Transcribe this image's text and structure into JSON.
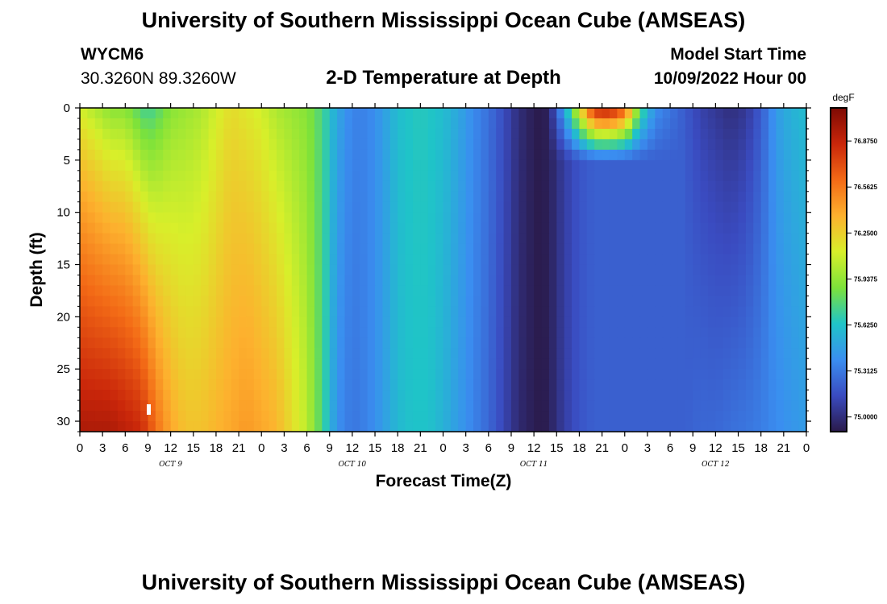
{
  "title": "University of Southern Mississippi Ocean Cube (AMSEAS)",
  "station": {
    "id": "WYCM6",
    "coords": "30.3260N  89.3260W"
  },
  "subtitle": "2-D Temperature at Depth",
  "model": {
    "label": "Model Start Time",
    "time": "10/09/2022 Hour 00"
  },
  "footer_title": "University of Southern Mississippi Ocean Cube (AMSEAS)",
  "chart_data": {
    "type": "heatmap",
    "title": "2-D Temperature at Depth",
    "xlabel": "Forecast Time(Z)",
    "ylabel": "Depth (ft)",
    "x_range_hours": [
      0,
      96
    ],
    "y_range_ft": [
      0,
      31
    ],
    "y_ticks": [
      0,
      5,
      10,
      15,
      20,
      25,
      30
    ],
    "x_tick_labels": [
      "0",
      "3",
      "6",
      "9",
      "12",
      "15",
      "18",
      "21",
      "0",
      "3",
      "6",
      "9",
      "12",
      "15",
      "18",
      "21",
      "0",
      "3",
      "6",
      "9",
      "12",
      "15",
      "18",
      "21",
      "0",
      "3",
      "6",
      "9",
      "12",
      "15",
      "18",
      "21",
      "0"
    ],
    "date_labels": [
      {
        "label": "OCT 9",
        "hour": 12
      },
      {
        "label": "OCT 10",
        "hour": 36
      },
      {
        "label": "OCT 11",
        "hour": 60
      },
      {
        "label": "OCT 12",
        "hour": 84
      }
    ],
    "colorbar": {
      "unit": "degF",
      "min": 74.9,
      "max": 77.1,
      "ticks": [
        "75.0000",
        "75.3125",
        "75.6250",
        "75.9375",
        "76.2500",
        "76.5625",
        "76.8750"
      ],
      "tick_values": [
        75.0,
        75.3125,
        75.625,
        75.9375,
        76.25,
        76.5625,
        76.875
      ],
      "colors": [
        "#2a1a4a",
        "#3a4bc0",
        "#3a8ef0",
        "#1fc4c8",
        "#7de23a",
        "#d8ef2a",
        "#fdb12e",
        "#f36a16",
        "#c9260a",
        "#7e0a04"
      ]
    },
    "time_profile": [
      {
        "h": 0,
        "top": 76.1,
        "bottom": 76.95
      },
      {
        "h": 2,
        "top": 76.0,
        "bottom": 76.95
      },
      {
        "h": 4,
        "top": 75.9,
        "bottom": 76.95
      },
      {
        "h": 6,
        "top": 75.9,
        "bottom": 76.9
      },
      {
        "h": 8,
        "top": 75.75,
        "bottom": 76.85
      },
      {
        "h": 9,
        "top": 75.7,
        "bottom": 76.75
      },
      {
        "h": 10,
        "top": 75.75,
        "bottom": 76.6
      },
      {
        "h": 12,
        "top": 75.9,
        "bottom": 76.4
      },
      {
        "h": 14,
        "top": 75.95,
        "bottom": 76.3
      },
      {
        "h": 16,
        "top": 76.0,
        "bottom": 76.3
      },
      {
        "h": 18,
        "top": 76.1,
        "bottom": 76.35
      },
      {
        "h": 20,
        "top": 76.2,
        "bottom": 76.4
      },
      {
        "h": 22,
        "top": 76.15,
        "bottom": 76.45
      },
      {
        "h": 24,
        "top": 76.1,
        "bottom": 76.4
      },
      {
        "h": 26,
        "top": 76.0,
        "bottom": 76.35
      },
      {
        "h": 28,
        "top": 75.95,
        "bottom": 76.2
      },
      {
        "h": 30,
        "top": 75.9,
        "bottom": 76.05
      },
      {
        "h": 32,
        "top": 75.75,
        "bottom": 75.75
      },
      {
        "h": 34,
        "top": 75.5,
        "bottom": 75.4
      },
      {
        "h": 36,
        "top": 75.35,
        "bottom": 75.3
      },
      {
        "h": 38,
        "top": 75.35,
        "bottom": 75.35
      },
      {
        "h": 40,
        "top": 75.45,
        "bottom": 75.45
      },
      {
        "h": 42,
        "top": 75.6,
        "bottom": 75.58
      },
      {
        "h": 44,
        "top": 75.65,
        "bottom": 75.63
      },
      {
        "h": 46,
        "top": 75.65,
        "bottom": 75.63
      },
      {
        "h": 48,
        "top": 75.6,
        "bottom": 75.55
      },
      {
        "h": 50,
        "top": 75.5,
        "bottom": 75.45
      },
      {
        "h": 52,
        "top": 75.38,
        "bottom": 75.35
      },
      {
        "h": 54,
        "top": 75.28,
        "bottom": 75.25
      },
      {
        "h": 56,
        "top": 75.15,
        "bottom": 75.12
      },
      {
        "h": 58,
        "top": 75.0,
        "bottom": 74.98
      },
      {
        "h": 60,
        "top": 74.92,
        "bottom": 74.92
      },
      {
        "h": 61,
        "top": 74.9,
        "bottom": 74.9
      },
      {
        "h": 62,
        "top": 74.95,
        "bottom": 74.93
      },
      {
        "h": 64,
        "top": 75.5,
        "bottom": 75.08
      },
      {
        "h": 66,
        "top": 76.2,
        "bottom": 75.18
      },
      {
        "h": 68,
        "top": 76.9,
        "bottom": 75.22
      },
      {
        "h": 70,
        "top": 76.95,
        "bottom": 75.22
      },
      {
        "h": 72,
        "top": 76.7,
        "bottom": 75.22
      },
      {
        "h": 74,
        "top": 75.8,
        "bottom": 75.22
      },
      {
        "h": 76,
        "top": 75.4,
        "bottom": 75.22
      },
      {
        "h": 78,
        "top": 75.3,
        "bottom": 75.22
      },
      {
        "h": 80,
        "top": 75.2,
        "bottom": 75.22
      },
      {
        "h": 82,
        "top": 75.1,
        "bottom": 75.25
      },
      {
        "h": 84,
        "top": 75.05,
        "bottom": 75.25
      },
      {
        "h": 86,
        "top": 75.0,
        "bottom": 75.28
      },
      {
        "h": 88,
        "top": 75.05,
        "bottom": 75.3
      },
      {
        "h": 90,
        "top": 75.2,
        "bottom": 75.33
      },
      {
        "h": 92,
        "top": 75.45,
        "bottom": 75.38
      },
      {
        "h": 94,
        "top": 75.55,
        "bottom": 75.42
      },
      {
        "h": 96,
        "top": 75.6,
        "bottom": 75.45
      }
    ]
  }
}
